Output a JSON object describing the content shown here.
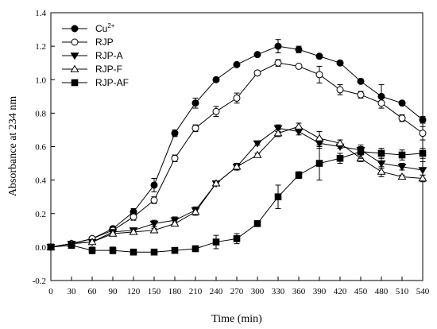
{
  "chart_data": {
    "type": "line",
    "title": "",
    "xlabel": "Time (min)",
    "ylabel": "Absorbance at 234 nm",
    "xlim": [
      0,
      540
    ],
    "ylim": [
      -0.2,
      1.4
    ],
    "xticks": [
      0,
      30,
      60,
      90,
      120,
      150,
      180,
      210,
      240,
      270,
      300,
      330,
      360,
      390,
      420,
      450,
      480,
      510,
      540
    ],
    "yticks": [
      -0.2,
      0.0,
      0.2,
      0.4,
      0.6,
      0.8,
      1.0,
      1.2,
      1.4
    ],
    "x_tick_labels": [
      "0",
      "30",
      "60",
      "90",
      "120",
      "150",
      "180",
      "210",
      "240",
      "270",
      "300",
      "330",
      "360",
      "390",
      "420",
      "450",
      "480",
      "510",
      "540"
    ],
    "y_tick_labels": [
      "-0.2",
      "0.0",
      "0.2",
      "0.4",
      "0.6",
      "0.8",
      "1.0",
      "1.2",
      "1.4"
    ],
    "grid": false,
    "legend_position": "top-left",
    "x": [
      0,
      30,
      60,
      90,
      120,
      150,
      180,
      210,
      240,
      270,
      300,
      330,
      360,
      390,
      420,
      450,
      480,
      510,
      540
    ],
    "series": [
      {
        "name": "Cu",
        "name_superscript": "2+",
        "marker": "circle-filled",
        "values": [
          0.0,
          0.02,
          0.05,
          0.11,
          0.21,
          0.37,
          0.68,
          0.86,
          1.0,
          1.09,
          1.15,
          1.2,
          1.18,
          1.14,
          1.1,
          0.99,
          0.9,
          0.86,
          0.76
        ],
        "errors": [
          0.01,
          0.01,
          0.01,
          0.01,
          0.02,
          0.04,
          0.02,
          0.03,
          0.01,
          0.01,
          0.01,
          0.04,
          0.02,
          0.01,
          0.01,
          0.01,
          0.07,
          0.01,
          0.02
        ]
      },
      {
        "name": "RJP",
        "name_superscript": "",
        "marker": "circle-open",
        "values": [
          0.0,
          0.02,
          0.05,
          0.1,
          0.18,
          0.28,
          0.53,
          0.71,
          0.81,
          0.89,
          1.04,
          1.1,
          1.08,
          1.03,
          0.94,
          0.91,
          0.86,
          0.77,
          0.68
        ],
        "errors": [
          0.01,
          0.01,
          0.01,
          0.01,
          0.02,
          0.02,
          0.02,
          0.02,
          0.03,
          0.03,
          0.01,
          0.02,
          0.01,
          0.05,
          0.03,
          0.02,
          0.03,
          0.02,
          0.04
        ]
      },
      {
        "name": "RJP-A",
        "name_superscript": "",
        "marker": "triangle-down-filled",
        "values": [
          0.0,
          0.02,
          0.03,
          0.09,
          0.1,
          0.14,
          0.16,
          0.22,
          0.38,
          0.48,
          0.62,
          0.71,
          0.69,
          0.62,
          0.6,
          0.58,
          0.5,
          0.48,
          0.46
        ],
        "errors": [
          0.01,
          0.01,
          0.01,
          0.01,
          0.01,
          0.02,
          0.02,
          0.02,
          0.01,
          0.02,
          0.01,
          0.02,
          0.02,
          0.03,
          0.01,
          0.02,
          0.03,
          0.02,
          0.05
        ]
      },
      {
        "name": "RJP-F",
        "name_superscript": "",
        "marker": "triangle-up-open",
        "values": [
          0.0,
          0.02,
          0.03,
          0.08,
          0.09,
          0.1,
          0.14,
          0.21,
          0.38,
          0.48,
          0.55,
          0.68,
          0.72,
          0.65,
          0.62,
          0.53,
          0.45,
          0.42,
          0.41
        ],
        "errors": [
          0.01,
          0.01,
          0.01,
          0.01,
          0.01,
          0.01,
          0.01,
          0.02,
          0.01,
          0.02,
          0.01,
          0.02,
          0.02,
          0.04,
          0.02,
          0.02,
          0.03,
          0.01,
          0.02
        ]
      },
      {
        "name": "RJP-AF",
        "name_superscript": "",
        "marker": "square-filled",
        "values": [
          0.0,
          0.01,
          -0.02,
          -0.02,
          -0.03,
          -0.03,
          -0.02,
          -0.01,
          0.03,
          0.05,
          0.14,
          0.3,
          0.43,
          0.5,
          0.53,
          0.57,
          0.56,
          0.55,
          0.56
        ],
        "errors": [
          0.01,
          0.01,
          0.02,
          0.02,
          0.01,
          0.01,
          0.01,
          0.01,
          0.04,
          0.03,
          0.01,
          0.07,
          0.02,
          0.1,
          0.03,
          0.04,
          0.03,
          0.03,
          0.03
        ]
      }
    ]
  }
}
